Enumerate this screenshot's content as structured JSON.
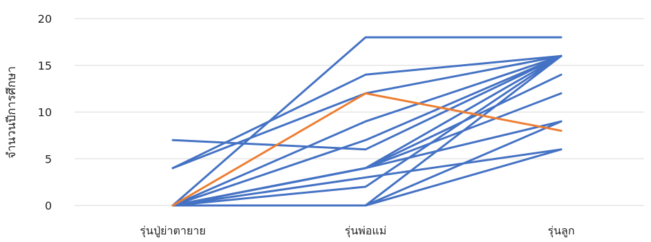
{
  "chart_data": {
    "type": "line",
    "title": "",
    "xlabel": "",
    "ylabel": "จำนวนปีการศึกษา",
    "categories": [
      "รุ่นปู่ย่าตายาย",
      "รุ่นพ่อแม่",
      "รุ่นลูก"
    ],
    "ylim": [
      0,
      20
    ],
    "yticks": [
      0,
      5,
      10,
      15,
      20
    ],
    "grid": true,
    "legend": "none",
    "series": [
      {
        "values": [
          0,
          18,
          18
        ],
        "color": "#4472c4"
      },
      {
        "values": [
          4,
          14,
          16
        ],
        "color": "#4472c4"
      },
      {
        "values": [
          4,
          12,
          16
        ],
        "color": "#4472c4"
      },
      {
        "values": [
          7,
          6,
          16
        ],
        "color": "#4472c4"
      },
      {
        "values": [
          0,
          9,
          16
        ],
        "color": "#4472c4"
      },
      {
        "values": [
          0,
          7,
          16
        ],
        "color": "#4472c4"
      },
      {
        "values": [
          0,
          4,
          16
        ],
        "color": "#4472c4"
      },
      {
        "values": [
          0,
          4,
          14
        ],
        "color": "#4472c4"
      },
      {
        "values": [
          0,
          4,
          12
        ],
        "color": "#4472c4"
      },
      {
        "values": [
          0,
          4,
          9
        ],
        "color": "#4472c4"
      },
      {
        "values": [
          0,
          2,
          16
        ],
        "color": "#4472c4"
      },
      {
        "values": [
          0,
          3,
          6
        ],
        "color": "#4472c4"
      },
      {
        "values": [
          0,
          0,
          16
        ],
        "color": "#4472c4"
      },
      {
        "values": [
          0,
          0,
          9
        ],
        "color": "#4472c4"
      },
      {
        "values": [
          0,
          0,
          6
        ],
        "color": "#4472c4"
      },
      {
        "values": [
          0,
          12,
          8
        ],
        "color": "#ed7d31"
      }
    ]
  }
}
